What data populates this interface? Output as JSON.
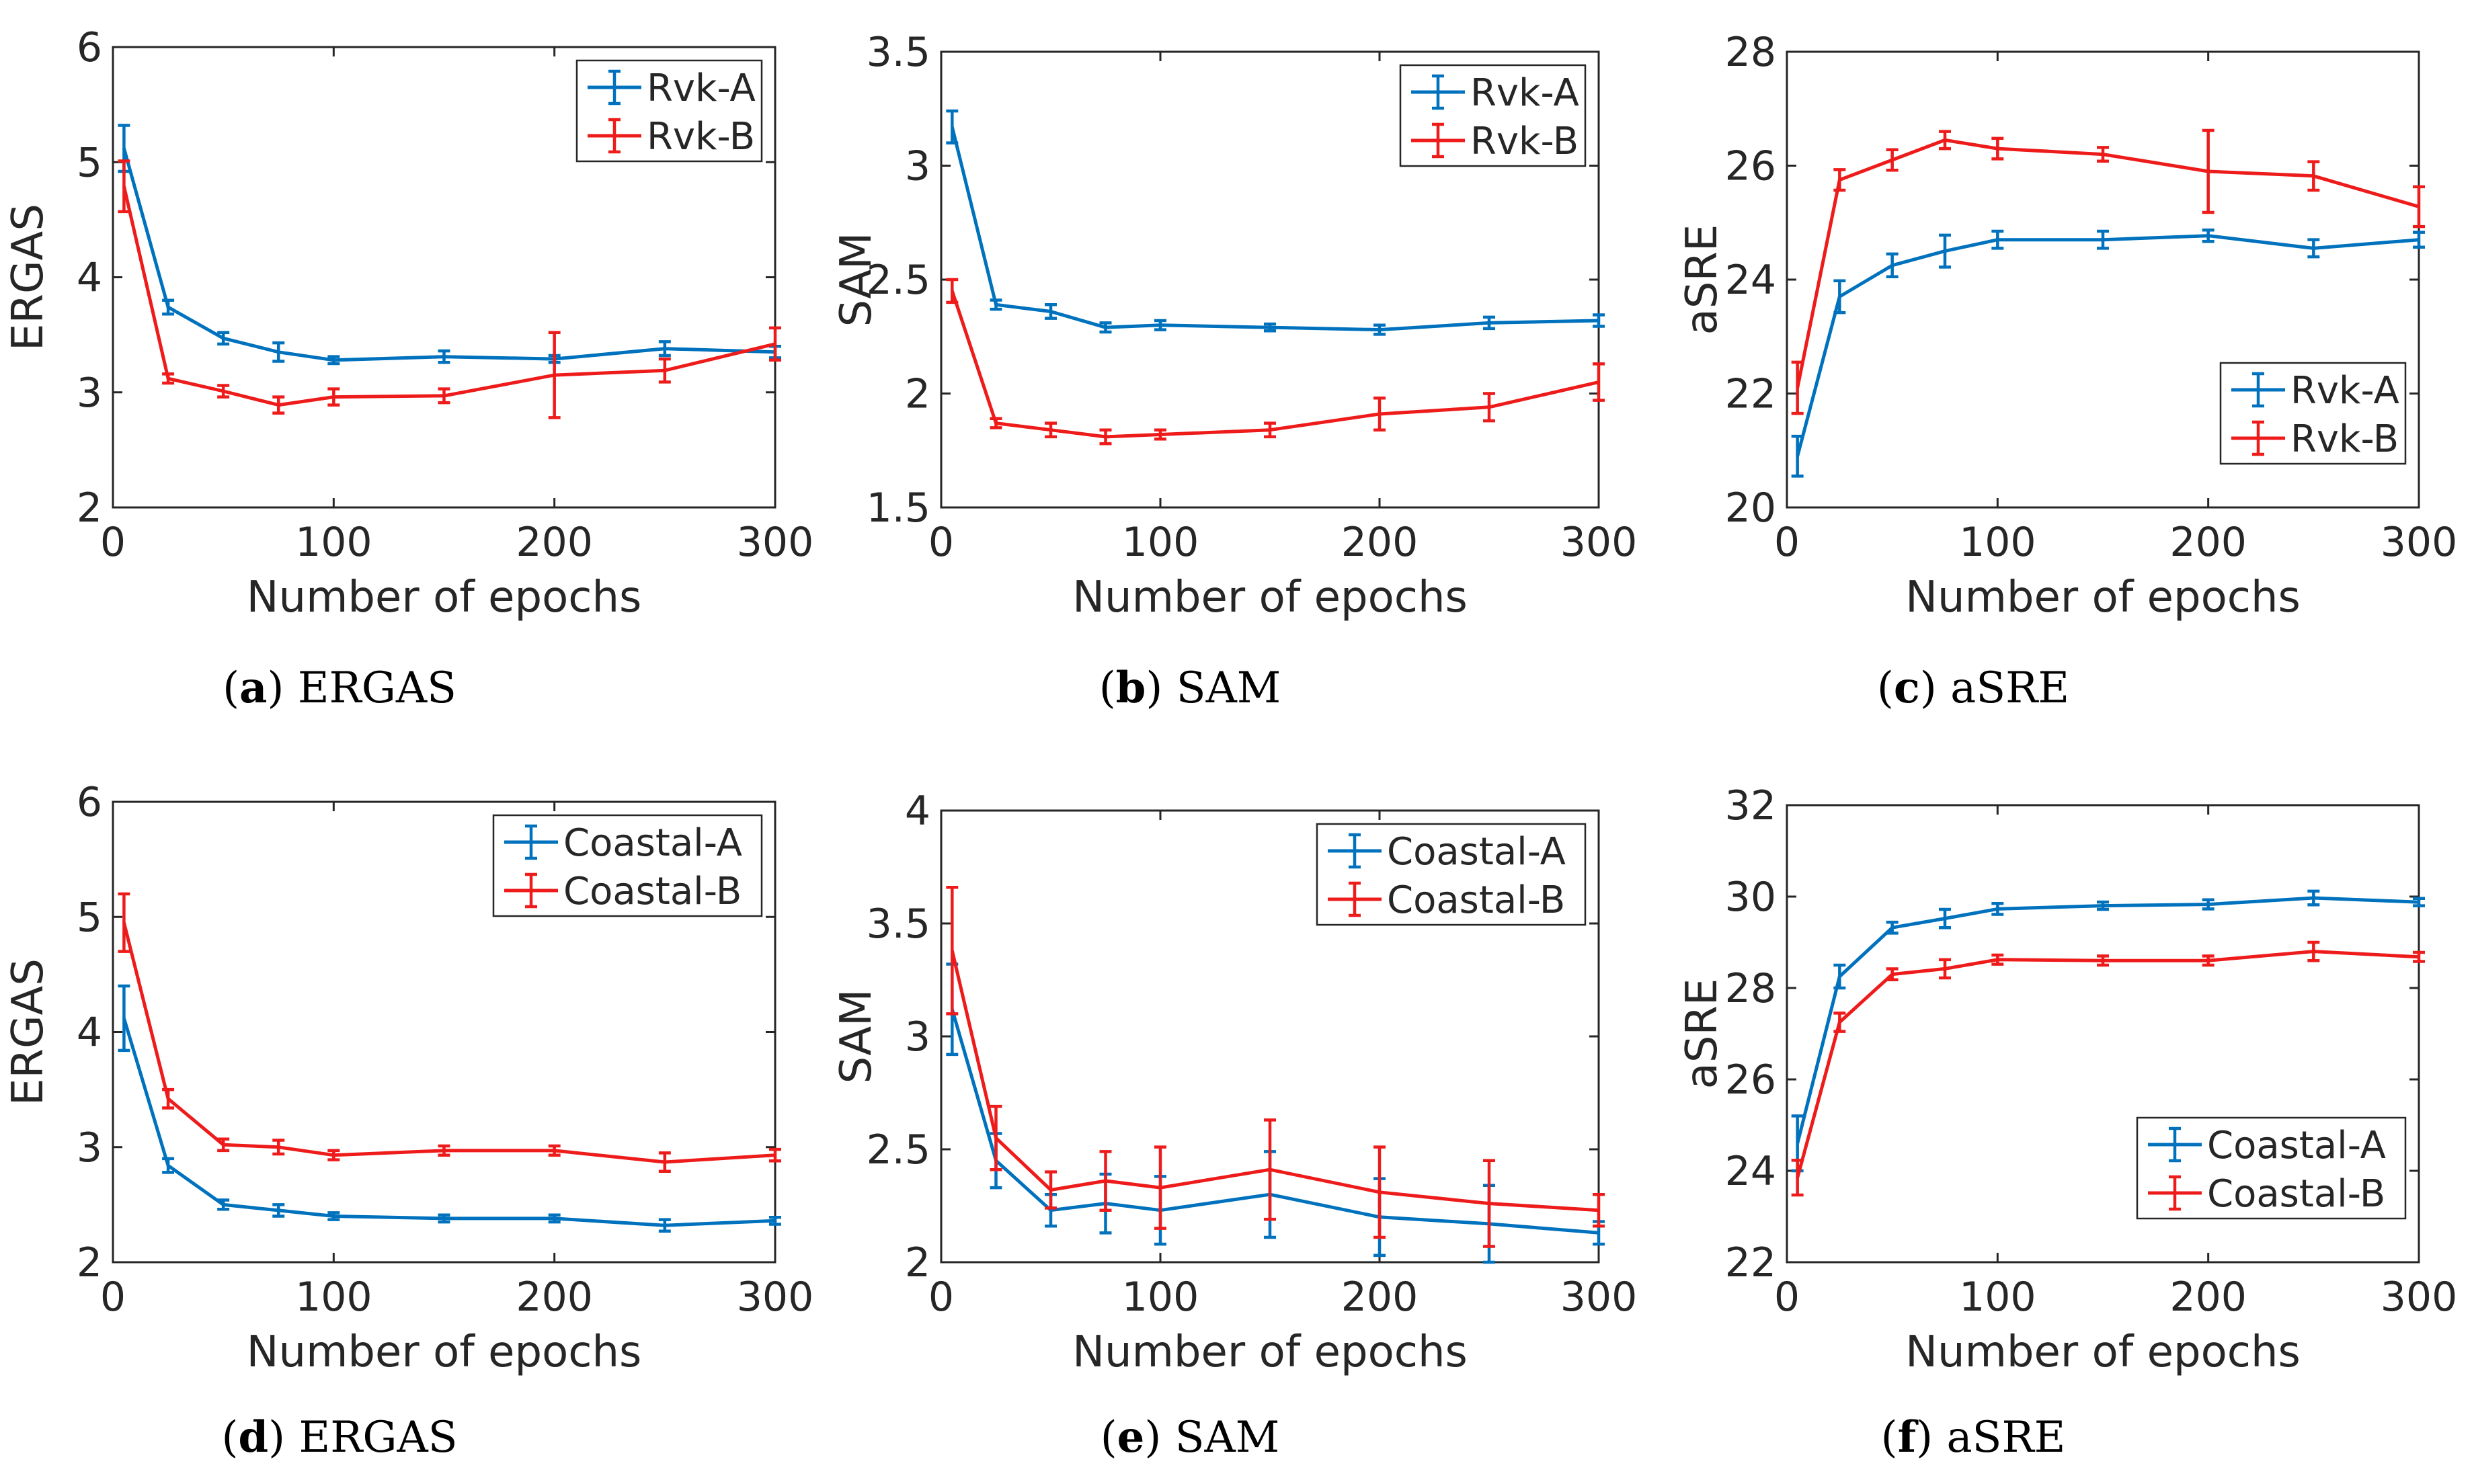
{
  "colors": {
    "A": "#0072BD",
    "B": "#EE1B1B"
  },
  "chart_data": [
    {
      "type": "line",
      "id": "a",
      "caption_letter": "a",
      "caption_text": "ERGAS",
      "xlabel": "Number of epochs",
      "ylabel": "ERGAS",
      "xlim": [
        0,
        300
      ],
      "ylim": [
        2,
        6
      ],
      "xticks": [
        0,
        100,
        200,
        300
      ],
      "yticks": [
        2,
        3,
        4,
        5,
        6
      ],
      "ytick_labels": [
        "2",
        "3",
        "4",
        "5",
        "6"
      ],
      "legend_position": "top-right",
      "x": [
        5,
        25,
        50,
        75,
        100,
        150,
        200,
        250,
        300
      ],
      "series": [
        {
          "name": "Rvk-A",
          "color_key": "A",
          "values": [
            5.12,
            3.74,
            3.47,
            3.35,
            3.28,
            3.31,
            3.29,
            3.38,
            3.35
          ],
          "errors": [
            0.2,
            0.06,
            0.05,
            0.08,
            0.03,
            0.05,
            0.03,
            0.06,
            0.05
          ]
        },
        {
          "name": "Rvk-B",
          "color_key": "B",
          "values": [
            4.79,
            3.12,
            3.01,
            2.89,
            2.96,
            2.97,
            3.15,
            3.19,
            3.42
          ],
          "errors": [
            0.22,
            0.04,
            0.05,
            0.07,
            0.07,
            0.06,
            0.37,
            0.1,
            0.14
          ]
        }
      ]
    },
    {
      "type": "line",
      "id": "b",
      "caption_letter": "b",
      "caption_text": "SAM",
      "xlabel": "Number of epochs",
      "ylabel": "SAM",
      "xlim": [
        0,
        300
      ],
      "ylim": [
        1.5,
        3.5
      ],
      "xticks": [
        0,
        100,
        200,
        300
      ],
      "yticks": [
        1.5,
        2,
        2.5,
        3,
        3.5
      ],
      "ytick_labels": [
        "1.5",
        "2",
        "2.5",
        "3",
        "3.5"
      ],
      "legend_position": "top-right",
      "x": [
        5,
        25,
        50,
        75,
        100,
        150,
        200,
        250,
        300
      ],
      "series": [
        {
          "name": "Rvk-A",
          "color_key": "A",
          "values": [
            3.17,
            2.39,
            2.36,
            2.29,
            2.3,
            2.29,
            2.28,
            2.31,
            2.32
          ],
          "errors": [
            0.07,
            0.02,
            0.03,
            0.02,
            0.02,
            0.015,
            0.02,
            0.025,
            0.025
          ]
        },
        {
          "name": "Rvk-B",
          "color_key": "B",
          "values": [
            2.45,
            1.87,
            1.84,
            1.81,
            1.82,
            1.84,
            1.91,
            1.94,
            2.05
          ],
          "errors": [
            0.05,
            0.02,
            0.03,
            0.03,
            0.02,
            0.03,
            0.07,
            0.06,
            0.08
          ]
        }
      ]
    },
    {
      "type": "line",
      "id": "c",
      "caption_letter": "c",
      "caption_text": "aSRE",
      "xlabel": "Number of epochs",
      "ylabel": "aSRE",
      "xlim": [
        0,
        300
      ],
      "ylim": [
        20,
        28
      ],
      "xticks": [
        0,
        100,
        200,
        300
      ],
      "yticks": [
        20,
        22,
        24,
        26,
        28
      ],
      "ytick_labels": [
        "20",
        "22",
        "24",
        "26",
        "28"
      ],
      "legend_position": "bottom-right",
      "x": [
        5,
        25,
        50,
        75,
        100,
        150,
        200,
        250,
        300
      ],
      "series": [
        {
          "name": "Rvk-A",
          "color_key": "A",
          "values": [
            20.9,
            23.7,
            24.25,
            24.5,
            24.7,
            24.7,
            24.77,
            24.55,
            24.7
          ],
          "errors": [
            0.35,
            0.28,
            0.2,
            0.28,
            0.15,
            0.15,
            0.1,
            0.15,
            0.13
          ]
        },
        {
          "name": "Rvk-B",
          "color_key": "B",
          "values": [
            22.1,
            25.75,
            26.1,
            26.45,
            26.3,
            26.2,
            25.9,
            25.82,
            25.28
          ],
          "errors": [
            0.45,
            0.18,
            0.18,
            0.15,
            0.18,
            0.12,
            0.72,
            0.25,
            0.35
          ]
        }
      ]
    },
    {
      "type": "line",
      "id": "d",
      "caption_letter": "d",
      "caption_text": "ERGAS",
      "xlabel": "Number of epochs",
      "ylabel": "ERGAS",
      "xlim": [
        0,
        300
      ],
      "ylim": [
        2,
        6
      ],
      "xticks": [
        0,
        100,
        200,
        300
      ],
      "yticks": [
        2,
        3,
        4,
        5,
        6
      ],
      "ytick_labels": [
        "2",
        "3",
        "4",
        "5",
        "6"
      ],
      "legend_position": "top-right",
      "x": [
        5,
        25,
        50,
        75,
        100,
        150,
        200,
        250,
        300
      ],
      "series": [
        {
          "name": "Coastal-A",
          "color_key": "A",
          "values": [
            4.12,
            2.84,
            2.5,
            2.45,
            2.4,
            2.38,
            2.38,
            2.32,
            2.36
          ],
          "errors": [
            0.28,
            0.06,
            0.04,
            0.05,
            0.03,
            0.03,
            0.03,
            0.05,
            0.03
          ]
        },
        {
          "name": "Coastal-B",
          "color_key": "B",
          "values": [
            4.95,
            3.42,
            3.02,
            3.0,
            2.93,
            2.97,
            2.97,
            2.87,
            2.93
          ],
          "errors": [
            0.25,
            0.08,
            0.05,
            0.06,
            0.04,
            0.04,
            0.04,
            0.08,
            0.05
          ]
        }
      ]
    },
    {
      "type": "line",
      "id": "e",
      "caption_letter": "e",
      "caption_text": "SAM",
      "xlabel": "Number of epochs",
      "ylabel": "SAM",
      "xlim": [
        0,
        300
      ],
      "ylim": [
        2,
        4
      ],
      "xticks": [
        0,
        100,
        200,
        300
      ],
      "yticks": [
        2,
        2.5,
        3,
        3.5,
        4
      ],
      "ytick_labels": [
        "2",
        "2.5",
        "3",
        "3.5",
        "4"
      ],
      "legend_position": "top-right",
      "x": [
        5,
        25,
        50,
        75,
        100,
        150,
        200,
        250,
        300
      ],
      "series": [
        {
          "name": "Coastal-A",
          "color_key": "A",
          "values": [
            3.12,
            2.45,
            2.23,
            2.26,
            2.23,
            2.3,
            2.2,
            2.17,
            2.13
          ],
          "errors": [
            0.2,
            0.12,
            0.07,
            0.13,
            0.15,
            0.19,
            0.17,
            0.17,
            0.05
          ]
        },
        {
          "name": "Coastal-B",
          "color_key": "B",
          "values": [
            3.38,
            2.55,
            2.32,
            2.36,
            2.33,
            2.41,
            2.31,
            2.26,
            2.23
          ],
          "errors": [
            0.28,
            0.14,
            0.08,
            0.13,
            0.18,
            0.22,
            0.2,
            0.19,
            0.07
          ]
        }
      ]
    },
    {
      "type": "line",
      "id": "f",
      "caption_letter": "f",
      "caption_text": "aSRE",
      "xlabel": "Number of epochs",
      "ylabel": "aSRE",
      "xlim": [
        0,
        300
      ],
      "ylim": [
        22,
        32
      ],
      "xticks": [
        0,
        100,
        200,
        300
      ],
      "yticks": [
        22,
        24,
        26,
        28,
        30,
        32
      ],
      "ytick_labels": [
        "22",
        "24",
        "26",
        "28",
        "30",
        "32"
      ],
      "legend_position": "bottom-right",
      "x": [
        5,
        25,
        50,
        75,
        100,
        150,
        200,
        250,
        300
      ],
      "series": [
        {
          "name": "Coastal-A",
          "color_key": "A",
          "values": [
            24.6,
            28.25,
            29.32,
            29.52,
            29.73,
            29.8,
            29.83,
            29.97,
            29.88
          ],
          "errors": [
            0.6,
            0.25,
            0.12,
            0.2,
            0.12,
            0.08,
            0.1,
            0.15,
            0.08
          ]
        },
        {
          "name": "Coastal-B",
          "color_key": "B",
          "values": [
            23.85,
            27.25,
            28.3,
            28.42,
            28.62,
            28.6,
            28.6,
            28.8,
            28.68
          ],
          "errors": [
            0.38,
            0.2,
            0.12,
            0.2,
            0.1,
            0.1,
            0.1,
            0.2,
            0.1
          ]
        }
      ]
    }
  ]
}
